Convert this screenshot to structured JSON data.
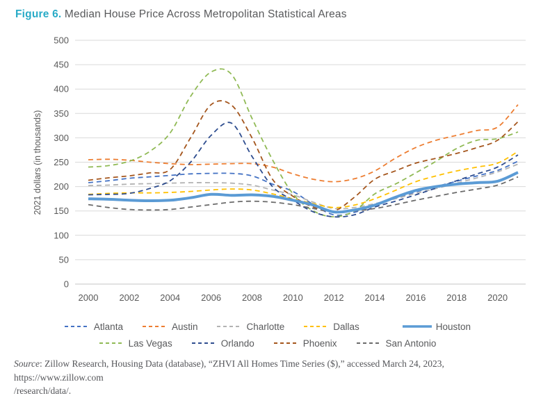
{
  "title": {
    "prefix": "Figure 6.",
    "text": "Median House Price Across Metropolitan Statistical Areas"
  },
  "colors": {
    "title_prefix": "#29ABC7",
    "title_text": "#58595B",
    "axis_text": "#595959",
    "gridline": "#D9D9D9",
    "axis_line": "#C6C6C6"
  },
  "chart_data": {
    "type": "line",
    "title": "Median House Price Across Metropolitan Statistical Areas",
    "xlabel": "",
    "ylabel": "2021 dollars (in thousands)",
    "ylim": [
      0,
      500
    ],
    "yticks": [
      0,
      50,
      100,
      150,
      200,
      250,
      300,
      350,
      400,
      450,
      500
    ],
    "xticks": [
      2000,
      2002,
      2004,
      2006,
      2008,
      2010,
      2012,
      2014,
      2016,
      2018,
      2020
    ],
    "x": [
      2000,
      2001,
      2002,
      2003,
      2004,
      2005,
      2006,
      2007,
      2008,
      2009,
      2010,
      2011,
      2012,
      2013,
      2014,
      2015,
      2016,
      2017,
      2018,
      2019,
      2020,
      2021
    ],
    "grid": "horizontal",
    "legend_position": "bottom",
    "series": [
      {
        "name": "Atlanta",
        "color": "#4472C4",
        "style": "dashed",
        "values": [
          208,
          212,
          217,
          220,
          223,
          226,
          227,
          227,
          222,
          205,
          190,
          163,
          142,
          147,
          163,
          176,
          189,
          200,
          211,
          222,
          233,
          252
        ]
      },
      {
        "name": "Austin",
        "color": "#ED7D31",
        "style": "dashed",
        "values": [
          255,
          256,
          254,
          250,
          247,
          245,
          246,
          247,
          247,
          240,
          226,
          215,
          210,
          216,
          232,
          258,
          280,
          295,
          305,
          315,
          322,
          368
        ]
      },
      {
        "name": "Charlotte",
        "color": "#B3B3B3",
        "style": "dashed",
        "values": [
          202,
          203,
          205,
          206,
          207,
          208,
          208,
          207,
          203,
          193,
          183,
          168,
          155,
          157,
          165,
          175,
          186,
          196,
          207,
          218,
          230,
          246
        ]
      },
      {
        "name": "Dallas",
        "color": "#FFC000",
        "style": "dashed",
        "values": [
          184,
          186,
          187,
          187,
          188,
          190,
          193,
          195,
          193,
          185,
          175,
          165,
          157,
          162,
          175,
          192,
          210,
          222,
          232,
          240,
          248,
          272
        ]
      },
      {
        "name": "Houston",
        "color": "#5B9BD5",
        "style": "solid",
        "values": [
          175,
          174,
          172,
          171,
          172,
          177,
          184,
          182,
          183,
          180,
          172,
          162,
          148,
          152,
          162,
          178,
          192,
          200,
          205,
          208,
          211,
          229
        ]
      },
      {
        "name": "Las Vegas",
        "color": "#90BA55",
        "style": "dashed",
        "values": [
          240,
          243,
          252,
          272,
          310,
          385,
          435,
          430,
          340,
          255,
          185,
          150,
          138,
          150,
          185,
          205,
          228,
          252,
          278,
          295,
          298,
          312
        ]
      },
      {
        "name": "Orlando",
        "color": "#2E4D8F",
        "style": "dashed",
        "values": [
          183,
          184,
          186,
          196,
          212,
          250,
          305,
          330,
          262,
          200,
          172,
          148,
          138,
          142,
          158,
          170,
          183,
          197,
          212,
          226,
          240,
          265
        ]
      },
      {
        "name": "Phoenix",
        "color": "#A4551C",
        "style": "dashed",
        "values": [
          213,
          218,
          222,
          228,
          235,
          300,
          368,
          367,
          300,
          215,
          180,
          158,
          150,
          178,
          215,
          232,
          248,
          258,
          268,
          280,
          295,
          333
        ]
      },
      {
        "name": "San Antonio",
        "color": "#6B6B6B",
        "style": "dashed",
        "values": [
          163,
          157,
          153,
          152,
          153,
          158,
          163,
          168,
          170,
          168,
          163,
          155,
          148,
          150,
          155,
          163,
          172,
          180,
          188,
          195,
          203,
          220
        ]
      }
    ]
  },
  "legend": {
    "rows": [
      [
        "Atlanta",
        "Austin",
        "Charlotte",
        "Dallas",
        "Houston"
      ],
      [
        "Las Vegas",
        "Orlando",
        "Phoenix",
        "San Antonio"
      ]
    ]
  },
  "source": {
    "italic_label": "Source",
    "line1_rest": ": Zillow Research, Housing Data (database), “ZHVI All Homes Time Series ($),” accessed March 24, 2023, https://www.zillow.com",
    "line2": "/research/data/."
  }
}
